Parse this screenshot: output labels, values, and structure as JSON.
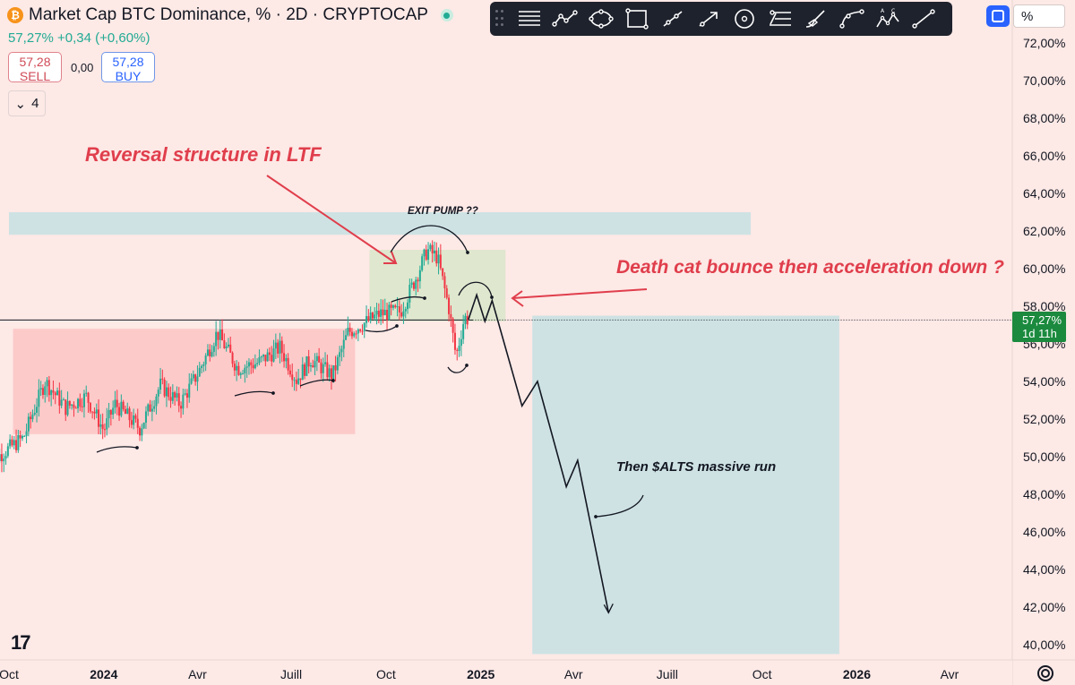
{
  "header": {
    "symbol_title": "Market Cap BTC Dominance, % · 2D · CRYPTOCAP",
    "change_text": "57,27% +0,34 (+0,60%)",
    "sell_price": "57,28",
    "sell_label": "SELL",
    "spread": "0,00",
    "buy_price": "57,28",
    "buy_label": "BUY",
    "indicators_count": "4"
  },
  "toolbar": {
    "tools": [
      "lines-tool-icon",
      "trend-path-icon",
      "ellipse-icon",
      "rectangle-icon",
      "ray-icon",
      "arrow-icon",
      "circle-icon",
      "fib-retracement-icon",
      "brush-icon",
      "curve-icon",
      "abc-pattern-icon",
      "line-tool-icon"
    ],
    "scale_unit": "%"
  },
  "colors": {
    "background": "#fde9e6",
    "up": "#22ab94",
    "down": "#f23645",
    "annotation_red": "#e03e4c",
    "range_box": "#fbbfbf",
    "exit_box": "#d9e6c9",
    "target_box": "#c6e1e2",
    "price_tag": "#1b8a3e"
  },
  "chart_data": {
    "type": "candlestick",
    "symbol": "Market Cap BTC Dominance, %",
    "interval": "2D",
    "y_axis": {
      "ticks": [
        "72,00%",
        "70,00%",
        "68,00%",
        "66,00%",
        "64,00%",
        "62,00%",
        "60,00%",
        "58,00%",
        "56,00%",
        "54,00%",
        "52,00%",
        "50,00%",
        "48,00%",
        "46,00%",
        "44,00%",
        "42,00%",
        "40,00%"
      ],
      "range": [
        39.5,
        73
      ],
      "unit": "%"
    },
    "x_axis": {
      "labels": [
        "Oct",
        "2024",
        "Avr",
        "Juill",
        "Oct",
        "2025",
        "Avr",
        "Juill",
        "Oct",
        "2026",
        "Avr"
      ],
      "range": [
        "2023-10-01",
        "2026-04-15"
      ]
    },
    "last_price": {
      "value": "57,27%",
      "countdown": "1d 11h",
      "y": 57.27
    },
    "ohlc_anchors": [
      {
        "date": "2023-09-10",
        "close": 49.6
      },
      {
        "date": "2023-10-15",
        "close": 51.0
      },
      {
        "date": "2023-11-05",
        "close": 54.0
      },
      {
        "date": "2023-11-25",
        "close": 52.6
      },
      {
        "date": "2023-12-15",
        "close": 53.2
      },
      {
        "date": "2024-01-01",
        "close": 51.4
      },
      {
        "date": "2024-01-12",
        "close": 52.8
      },
      {
        "date": "2024-02-05",
        "close": 51.5
      },
      {
        "date": "2024-02-25",
        "close": 53.8
      },
      {
        "date": "2024-03-15",
        "close": 52.8
      },
      {
        "date": "2024-04-02",
        "close": 54.5
      },
      {
        "date": "2024-04-20",
        "close": 56.6
      },
      {
        "date": "2024-05-10",
        "close": 54.7
      },
      {
        "date": "2024-05-30",
        "close": 55.0
      },
      {
        "date": "2024-06-20",
        "close": 55.8
      },
      {
        "date": "2024-07-06",
        "close": 54.1
      },
      {
        "date": "2024-07-20",
        "close": 55.2
      },
      {
        "date": "2024-08-10",
        "close": 54.3
      },
      {
        "date": "2024-08-25",
        "close": 56.6
      },
      {
        "date": "2024-09-10",
        "close": 57.1
      },
      {
        "date": "2024-09-25",
        "close": 57.6
      },
      {
        "date": "2024-10-15",
        "close": 57.7
      },
      {
        "date": "2024-10-30",
        "close": 59.5
      },
      {
        "date": "2024-11-10",
        "close": 61.0
      },
      {
        "date": "2024-11-20",
        "close": 60.6
      },
      {
        "date": "2024-12-01",
        "close": 57.9
      },
      {
        "date": "2024-12-08",
        "close": 55.3
      },
      {
        "date": "2024-12-16",
        "close": 57.4
      },
      {
        "date": "2024-12-20",
        "close": 57.3
      }
    ],
    "projection_path": [
      {
        "date": "2024-12-20",
        "y": 57.3
      },
      {
        "date": "2024-12-28",
        "y": 58.6
      },
      {
        "date": "2025-01-05",
        "y": 57.2
      },
      {
        "date": "2025-01-12",
        "y": 58.3
      },
      {
        "date": "2025-02-10",
        "y": 52.7
      },
      {
        "date": "2025-02-25",
        "y": 54.0
      },
      {
        "date": "2025-03-25",
        "y": 48.4
      },
      {
        "date": "2025-04-05",
        "y": 49.8
      },
      {
        "date": "2025-05-05",
        "y": 41.7
      }
    ],
    "zones": [
      {
        "name": "range",
        "from": "2023-10-05",
        "to": "2024-09-01",
        "y1": 56.8,
        "y2": 51.2
      },
      {
        "name": "exit-pump",
        "from": "2024-09-15",
        "to": "2025-01-25",
        "y1": 61.0,
        "y2": 57.2
      },
      {
        "name": "resistance",
        "from": "2023-10-01",
        "to": "2025-09-20",
        "y1": 63.0,
        "y2": 61.8
      },
      {
        "name": "target",
        "from": "2025-02-20",
        "to": "2025-12-15",
        "y1": 57.5,
        "y2": 39.5
      }
    ],
    "annotations": {
      "reversal": "Reversal structure in LTF",
      "exit_pump": "EXIT PUMP  ??",
      "death_cat": "Death cat bounce then acceleration down ?",
      "alts_run": "Then $ALTS massive run"
    },
    "legend": "none",
    "grid": false
  }
}
